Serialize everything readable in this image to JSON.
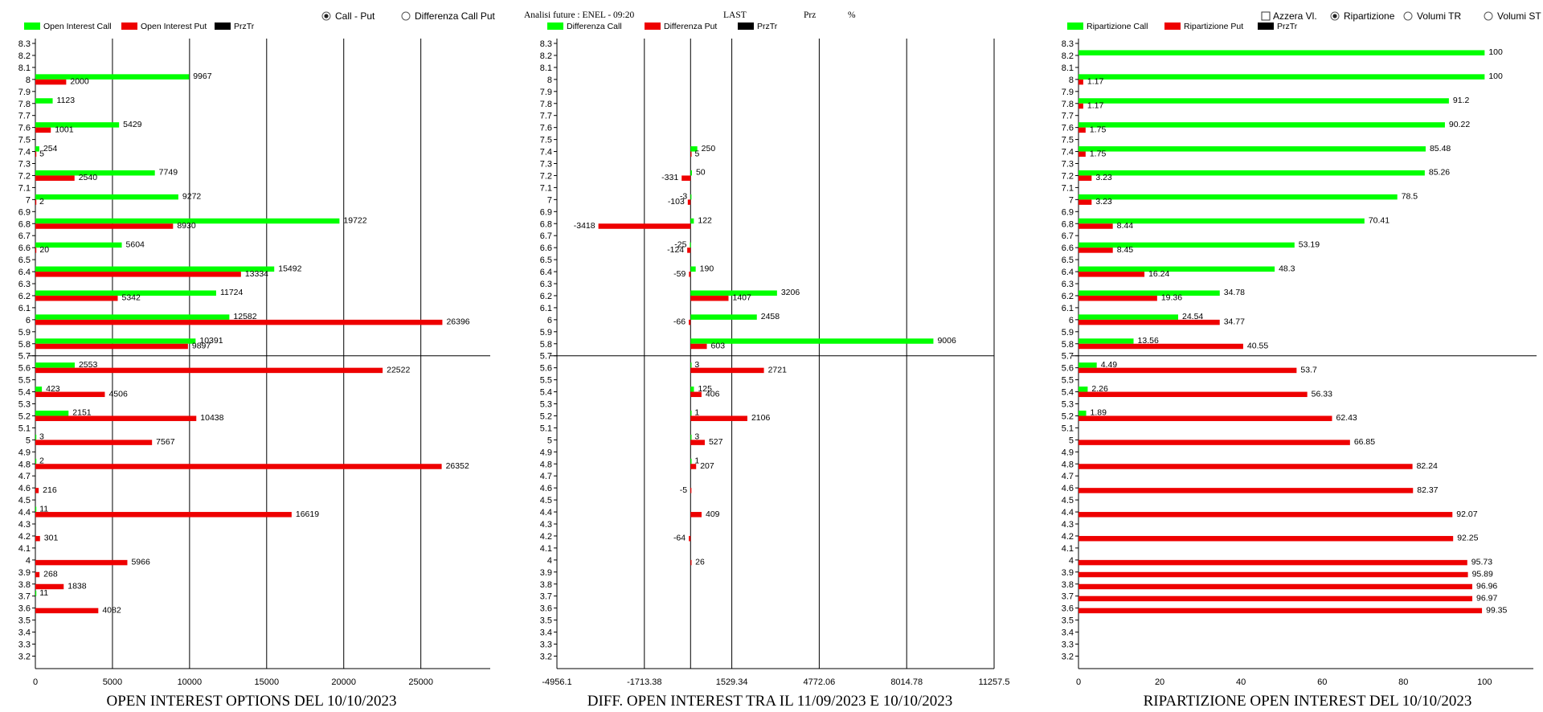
{
  "controls": {
    "radio_call_put": "Call - Put",
    "radio_diff_call_put": "Differenza Call Put",
    "header_info": "Analisi future : ENEL - 09:20",
    "header_last": "LAST",
    "header_prz": "Prz",
    "header_pct": "%",
    "checkbox_azzera": "Azzera Vl.",
    "radio_ripartizione": "Ripartizione",
    "radio_volumi_tr": "Volumi TR",
    "radio_volumi_st": "Volumi ST"
  },
  "colors": {
    "call": "#00ff00",
    "put": "#ee0000",
    "prz": "#000000"
  },
  "chart_data": [
    {
      "type": "bar",
      "orientation": "horizontal",
      "title": "OPEN INTEREST OPTIONS DEL 10/10/2023",
      "legend": [
        "Open Interest Call",
        "Open Interest Put",
        "PrzTr"
      ],
      "legend_position": "top-left",
      "categories": [
        "8.3",
        "8.2",
        "8.1",
        "8",
        "7.9",
        "7.8",
        "7.7",
        "7.6",
        "7.5",
        "7.4",
        "7.3",
        "7.2",
        "7.1",
        "7",
        "6.9",
        "6.8",
        "6.7",
        "6.6",
        "6.5",
        "6.4",
        "6.3",
        "6.2",
        "6.1",
        "6",
        "5.9",
        "5.8",
        "5.7",
        "5.6",
        "5.5",
        "5.4",
        "5.3",
        "5.2",
        "5.1",
        "5",
        "4.9",
        "4.8",
        "4.7",
        "4.6",
        "4.5",
        "4.4",
        "4.3",
        "4.2",
        "4.1",
        "4",
        "3.9",
        "3.8",
        "3.7",
        "3.6",
        "3.5",
        "3.4",
        "3.3",
        "3.2"
      ],
      "x_ticks": [
        "0",
        "5000",
        "10000",
        "15000",
        "20000",
        "25000"
      ],
      "xlim": [
        0,
        29500
      ],
      "price_line": 5.7,
      "grid": "vertical",
      "series": [
        {
          "name": "Open Interest Call",
          "color": "#00ff00",
          "points": [
            {
              "strike": "8",
              "value": 9967
            },
            {
              "strike": "7.8",
              "value": 1123
            },
            {
              "strike": "7.6",
              "value": 5429
            },
            {
              "strike": "7.4",
              "value": 254
            },
            {
              "strike": "7.2",
              "value": 7749
            },
            {
              "strike": "7",
              "value": 9272
            },
            {
              "strike": "6.8",
              "value": 19722
            },
            {
              "strike": "6.6",
              "value": 5604
            },
            {
              "strike": "6.4",
              "value": 15492
            },
            {
              "strike": "6.2",
              "value": 11724
            },
            {
              "strike": "6",
              "value": 12582
            },
            {
              "strike": "5.8",
              "value": 10391
            },
            {
              "strike": "5.6",
              "value": 2553
            },
            {
              "strike": "5.4",
              "value": 423
            },
            {
              "strike": "5.2",
              "value": 2151
            },
            {
              "strike": "5",
              "value": 3
            },
            {
              "strike": "4.8",
              "value": 2
            },
            {
              "strike": "4.4",
              "value": 11
            },
            {
              "strike": "3.7",
              "value": 11
            }
          ]
        },
        {
          "name": "Open Interest Put",
          "color": "#ee0000",
          "points": [
            {
              "strike": "8",
              "value": 2000
            },
            {
              "strike": "7.6",
              "value": 1001
            },
            {
              "strike": "7.4",
              "value": 5
            },
            {
              "strike": "7.2",
              "value": 2540
            },
            {
              "strike": "7",
              "value": 2
            },
            {
              "strike": "6.8",
              "value": 8930
            },
            {
              "strike": "6.6",
              "value": 20
            },
            {
              "strike": "6.4",
              "value": 13334
            },
            {
              "strike": "6.2",
              "value": 5342
            },
            {
              "strike": "6",
              "value": 26396
            },
            {
              "strike": "5.8",
              "value": 9897
            },
            {
              "strike": "5.6",
              "value": 22522
            },
            {
              "strike": "5.4",
              "value": 4506
            },
            {
              "strike": "5.2",
              "value": 10438
            },
            {
              "strike": "5",
              "value": 7567
            },
            {
              "strike": "4.8",
              "value": 26352
            },
            {
              "strike": "4.6",
              "value": 216
            },
            {
              "strike": "4.4",
              "value": 16619
            },
            {
              "strike": "4.2",
              "value": 301
            },
            {
              "strike": "4",
              "value": 5966
            },
            {
              "strike": "3.9",
              "value": 268
            },
            {
              "strike": "3.8",
              "value": 1838
            },
            {
              "strike": "3.6",
              "value": 4082
            }
          ]
        }
      ]
    },
    {
      "type": "bar",
      "orientation": "horizontal",
      "title": "DIFF. OPEN INTEREST TRA IL 11/09/2023 E 10/10/2023",
      "legend": [
        "Differenza Call",
        "Differenza Put",
        "PrzTr"
      ],
      "legend_position": "top-left",
      "categories": [
        "8.3",
        "8.2",
        "8.1",
        "8",
        "7.9",
        "7.8",
        "7.7",
        "7.6",
        "7.5",
        "7.4",
        "7.3",
        "7.2",
        "7.1",
        "7",
        "6.9",
        "6.8",
        "6.7",
        "6.6",
        "6.5",
        "6.4",
        "6.3",
        "6.2",
        "6.1",
        "6",
        "5.9",
        "5.8",
        "5.7",
        "5.6",
        "5.5",
        "5.4",
        "5.3",
        "5.2",
        "5.1",
        "5",
        "4.9",
        "4.8",
        "4.7",
        "4.6",
        "4.5",
        "4.4",
        "4.3",
        "4.2",
        "4.1",
        "4",
        "3.9",
        "3.8",
        "3.7",
        "3.6",
        "3.5",
        "3.4",
        "3.3",
        "3.2"
      ],
      "x_ticks": [
        "-4956.1",
        "-1713.38",
        "1529.34",
        "4772.06",
        "8014.78",
        "11257.5"
      ],
      "xlim": [
        -4956.1,
        11257.5
      ],
      "price_line": 5.7,
      "grid": "vertical",
      "series": [
        {
          "name": "Differenza Call",
          "color": "#00ff00",
          "points": [
            {
              "strike": "7.4",
              "value": 250
            },
            {
              "strike": "7.2",
              "value": 50
            },
            {
              "strike": "7",
              "value": -3
            },
            {
              "strike": "6.8",
              "value": 122
            },
            {
              "strike": "6.6",
              "value": -25
            },
            {
              "strike": "6.4",
              "value": 190
            },
            {
              "strike": "6.2",
              "value": 3206
            },
            {
              "strike": "6",
              "value": 2458
            },
            {
              "strike": "5.8",
              "value": 9006
            },
            {
              "strike": "5.6",
              "value": 3
            },
            {
              "strike": "5.4",
              "value": 125
            },
            {
              "strike": "5.2",
              "value": 1
            },
            {
              "strike": "5",
              "value": 3
            },
            {
              "strike": "4.8",
              "value": 1
            }
          ]
        },
        {
          "name": "Differenza Put",
          "color": "#ee0000",
          "points": [
            {
              "strike": "7.4",
              "value": 5
            },
            {
              "strike": "7.2",
              "value": -331
            },
            {
              "strike": "7",
              "value": -103
            },
            {
              "strike": "6.8",
              "value": -3418
            },
            {
              "strike": "6.6",
              "value": -124
            },
            {
              "strike": "6.4",
              "value": -59
            },
            {
              "strike": "6.2",
              "value": 1407
            },
            {
              "strike": "6",
              "value": -66
            },
            {
              "strike": "5.8",
              "value": 603
            },
            {
              "strike": "5.6",
              "value": 2721
            },
            {
              "strike": "5.4",
              "value": 406
            },
            {
              "strike": "5.2",
              "value": 2106
            },
            {
              "strike": "5",
              "value": 527
            },
            {
              "strike": "4.8",
              "value": 207
            },
            {
              "strike": "4.6",
              "value": -5
            },
            {
              "strike": "4.4",
              "value": 409
            },
            {
              "strike": "4.2",
              "value": -64
            },
            {
              "strike": "4",
              "value": 26
            }
          ]
        }
      ]
    },
    {
      "type": "bar",
      "orientation": "horizontal",
      "title": "RIPARTIZIONE OPEN INTEREST DEL 10/10/2023",
      "legend": [
        "Ripartizione Call",
        "Ripartizione Put",
        "PrzTr"
      ],
      "legend_position": "top-left",
      "categories": [
        "8.3",
        "8.2",
        "8.1",
        "8",
        "7.9",
        "7.8",
        "7.7",
        "7.6",
        "7.5",
        "7.4",
        "7.3",
        "7.2",
        "7.1",
        "7",
        "6.9",
        "6.8",
        "6.7",
        "6.6",
        "6.5",
        "6.4",
        "6.3",
        "6.2",
        "6.1",
        "6",
        "5.9",
        "5.8",
        "5.7",
        "5.6",
        "5.5",
        "5.4",
        "5.3",
        "5.2",
        "5.1",
        "5",
        "4.9",
        "4.8",
        "4.7",
        "4.6",
        "4.5",
        "4.4",
        "4.3",
        "4.2",
        "4.1",
        "4",
        "3.9",
        "3.8",
        "3.7",
        "3.6",
        "3.5",
        "3.4",
        "3.3",
        "3.2"
      ],
      "x_ticks": [
        "0",
        "20",
        "40",
        "60",
        "80",
        "100"
      ],
      "xlim": [
        0,
        112
      ],
      "price_line": 5.7,
      "grid": "none",
      "series": [
        {
          "name": "Ripartizione Call",
          "color": "#00ff00",
          "points": [
            {
              "strike": "8.2",
              "value": 100
            },
            {
              "strike": "8",
              "value": 100
            },
            {
              "strike": "7.8",
              "value": 91.2
            },
            {
              "strike": "7.6",
              "value": 90.22
            },
            {
              "strike": "7.4",
              "value": 85.48
            },
            {
              "strike": "7.2",
              "value": 85.26
            },
            {
              "strike": "7",
              "value": 78.5
            },
            {
              "strike": "6.8",
              "value": 70.41
            },
            {
              "strike": "6.6",
              "value": 53.19
            },
            {
              "strike": "6.4",
              "value": 48.3
            },
            {
              "strike": "6.2",
              "value": 34.78
            },
            {
              "strike": "6",
              "value": 24.54
            },
            {
              "strike": "5.8",
              "value": 13.56
            },
            {
              "strike": "5.6",
              "value": 4.49
            },
            {
              "strike": "5.4",
              "value": 2.26
            },
            {
              "strike": "5.2",
              "value": 1.89
            }
          ]
        },
        {
          "name": "Ripartizione Put",
          "color": "#ee0000",
          "points": [
            {
              "strike": "8",
              "value": 1.17
            },
            {
              "strike": "7.8",
              "value": 1.17
            },
            {
              "strike": "7.6",
              "value": 1.75
            },
            {
              "strike": "7.4",
              "value": 1.75
            },
            {
              "strike": "7.2",
              "value": 3.23
            },
            {
              "strike": "7",
              "value": 3.23
            },
            {
              "strike": "6.8",
              "value": 8.44
            },
            {
              "strike": "6.6",
              "value": 8.45
            },
            {
              "strike": "6.4",
              "value": 16.24
            },
            {
              "strike": "6.2",
              "value": 19.36
            },
            {
              "strike": "6",
              "value": 34.77
            },
            {
              "strike": "5.8",
              "value": 40.55
            },
            {
              "strike": "5.6",
              "value": 53.7
            },
            {
              "strike": "5.4",
              "value": 56.33
            },
            {
              "strike": "5.2",
              "value": 62.43
            },
            {
              "strike": "5",
              "value": 66.85
            },
            {
              "strike": "4.8",
              "value": 82.24
            },
            {
              "strike": "4.6",
              "value": 82.37
            },
            {
              "strike": "4.4",
              "value": 92.07
            },
            {
              "strike": "4.2",
              "value": 92.25
            },
            {
              "strike": "4",
              "value": 95.73
            },
            {
              "strike": "3.9",
              "value": 95.89
            },
            {
              "strike": "3.8",
              "value": 96.96
            },
            {
              "strike": "3.7",
              "value": 96.97
            },
            {
              "strike": "3.6",
              "value": 99.35
            }
          ]
        }
      ]
    }
  ]
}
